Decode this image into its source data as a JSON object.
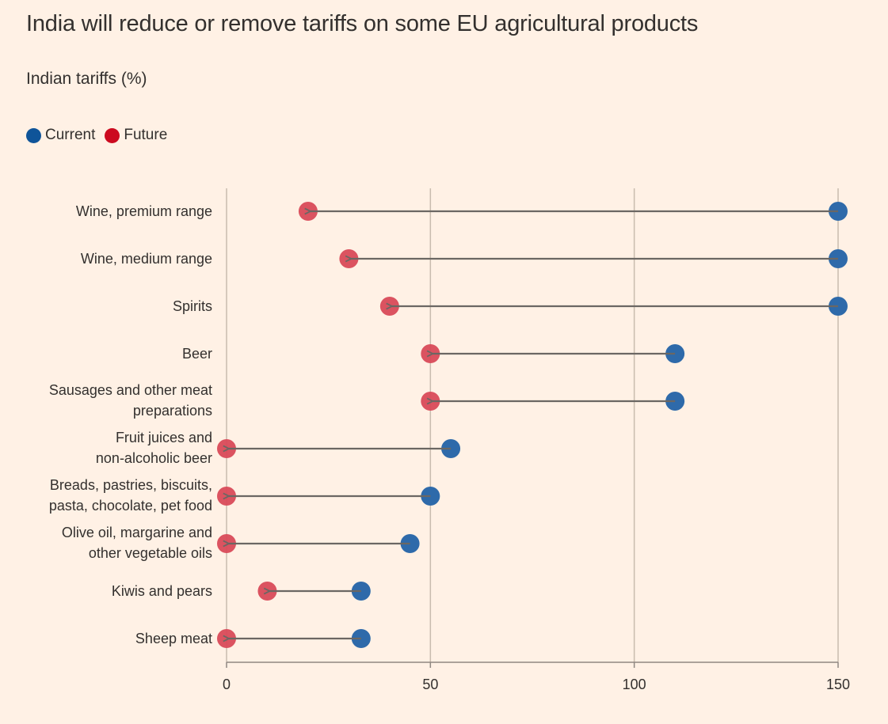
{
  "header": {
    "title": "India will reduce or remove tariffs on some EU agricultural products",
    "subtitle": "Indian tariffs (%)"
  },
  "legend": [
    {
      "label": "Current",
      "color": "#0f5499"
    },
    {
      "label": "Future",
      "color": "#cc0a1f"
    }
  ],
  "colors": {
    "current": "#2e6aaa",
    "future": "#d94a58",
    "arrow": "#6b6763",
    "grid": "#c9bcae",
    "axis": "#8f8882"
  },
  "chart_data": {
    "type": "dumbbell",
    "title": "India will reduce or remove tariffs on some EU agricultural products",
    "subtitle": "Indian tariffs (%)",
    "xlabel": "",
    "ylabel": "",
    "xlim": [
      0,
      150
    ],
    "xticks": [
      0,
      50,
      100,
      150
    ],
    "grid": true,
    "legend_position": "top-left",
    "categories": [
      [
        "Wine, premium range"
      ],
      [
        "Wine, medium range"
      ],
      [
        "Spirits"
      ],
      [
        "Beer"
      ],
      [
        "Sausages and other meat",
        "preparations"
      ],
      [
        "Fruit juices and",
        "non-alcoholic beer"
      ],
      [
        "Breads, pastries, biscuits,",
        "pasta, chocolate, pet food"
      ],
      [
        "Olive oil, margarine and",
        "other vegetable oils"
      ],
      [
        "Kiwis and pears"
      ],
      [
        "Sheep meat"
      ]
    ],
    "series": [
      {
        "name": "Current",
        "values": [
          150,
          150,
          150,
          110,
          110,
          55,
          50,
          45,
          33,
          33
        ]
      },
      {
        "name": "Future",
        "values": [
          20,
          30,
          40,
          50,
          50,
          0,
          0,
          0,
          10,
          0
        ]
      }
    ]
  }
}
